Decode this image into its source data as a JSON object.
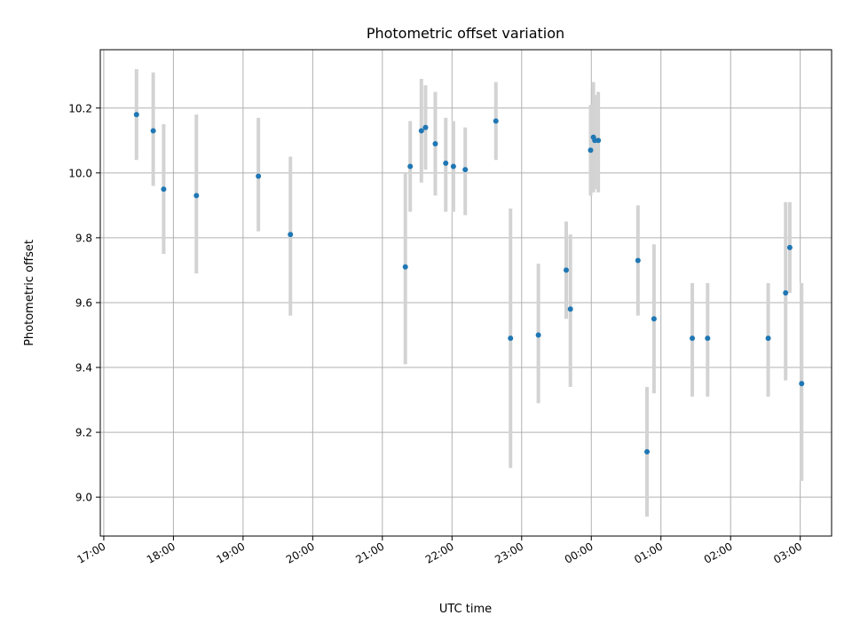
{
  "chart_data": {
    "type": "scatter",
    "title": "Photometric offset variation",
    "xlabel": "UTC time",
    "ylabel": "Photometric offset",
    "x_unit": "hours since 17:00 UTC",
    "xlim": [
      -0.05,
      10.45
    ],
    "ylim": [
      8.88,
      10.38
    ],
    "x_ticks": [
      {
        "value": 0,
        "label": "17:00"
      },
      {
        "value": 1,
        "label": "18:00"
      },
      {
        "value": 2,
        "label": "19:00"
      },
      {
        "value": 3,
        "label": "20:00"
      },
      {
        "value": 4,
        "label": "21:00"
      },
      {
        "value": 5,
        "label": "22:00"
      },
      {
        "value": 6,
        "label": "23:00"
      },
      {
        "value": 7,
        "label": "00:00"
      },
      {
        "value": 8,
        "label": "01:00"
      },
      {
        "value": 9,
        "label": "02:00"
      },
      {
        "value": 10,
        "label": "03:00"
      }
    ],
    "y_ticks": [
      {
        "value": 9.0,
        "label": "9.0"
      },
      {
        "value": 9.2,
        "label": "9.2"
      },
      {
        "value": 9.4,
        "label": "9.4"
      },
      {
        "value": 9.6,
        "label": "9.6"
      },
      {
        "value": 9.8,
        "label": "9.8"
      },
      {
        "value": 10.0,
        "label": "10.0"
      },
      {
        "value": 10.2,
        "label": "10.2"
      }
    ],
    "grid": true,
    "marker_color": "#1f77b4",
    "errorbar_color": "#d3d3d3",
    "points": [
      {
        "x": 0.47,
        "y": 10.18,
        "lo": 10.04,
        "hi": 10.32
      },
      {
        "x": 0.71,
        "y": 10.13,
        "lo": 9.96,
        "hi": 10.31
      },
      {
        "x": 0.86,
        "y": 9.95,
        "lo": 9.75,
        "hi": 10.15
      },
      {
        "x": 1.33,
        "y": 9.93,
        "lo": 9.69,
        "hi": 10.18
      },
      {
        "x": 2.22,
        "y": 9.99,
        "lo": 9.82,
        "hi": 10.17
      },
      {
        "x": 2.68,
        "y": 9.81,
        "lo": 9.56,
        "hi": 10.05
      },
      {
        "x": 4.33,
        "y": 9.71,
        "lo": 9.41,
        "hi": 10.0
      },
      {
        "x": 4.4,
        "y": 10.02,
        "lo": 9.88,
        "hi": 10.16
      },
      {
        "x": 4.56,
        "y": 10.13,
        "lo": 9.97,
        "hi": 10.29
      },
      {
        "x": 4.62,
        "y": 10.14,
        "lo": 10.01,
        "hi": 10.27
      },
      {
        "x": 4.76,
        "y": 10.09,
        "lo": 9.93,
        "hi": 10.25
      },
      {
        "x": 4.91,
        "y": 10.03,
        "lo": 9.88,
        "hi": 10.17
      },
      {
        "x": 5.02,
        "y": 10.02,
        "lo": 9.88,
        "hi": 10.16
      },
      {
        "x": 5.19,
        "y": 10.01,
        "lo": 9.87,
        "hi": 10.14
      },
      {
        "x": 5.63,
        "y": 10.16,
        "lo": 10.04,
        "hi": 10.28
      },
      {
        "x": 5.84,
        "y": 9.49,
        "lo": 9.09,
        "hi": 9.89
      },
      {
        "x": 6.24,
        "y": 9.5,
        "lo": 9.29,
        "hi": 9.72
      },
      {
        "x": 6.64,
        "y": 9.7,
        "lo": 9.55,
        "hi": 9.85
      },
      {
        "x": 6.7,
        "y": 9.58,
        "lo": 9.34,
        "hi": 9.81
      },
      {
        "x": 6.99,
        "y": 10.07,
        "lo": 9.93,
        "hi": 10.21
      },
      {
        "x": 7.03,
        "y": 10.11,
        "lo": 9.94,
        "hi": 10.28
      },
      {
        "x": 7.05,
        "y": 10.1,
        "lo": 9.95,
        "hi": 10.24
      },
      {
        "x": 7.1,
        "y": 10.1,
        "lo": 9.94,
        "hi": 10.25
      },
      {
        "x": 7.67,
        "y": 9.73,
        "lo": 9.56,
        "hi": 9.9
      },
      {
        "x": 7.8,
        "y": 9.14,
        "lo": 8.94,
        "hi": 9.34
      },
      {
        "x": 7.9,
        "y": 9.55,
        "lo": 9.32,
        "hi": 9.78
      },
      {
        "x": 8.45,
        "y": 9.49,
        "lo": 9.31,
        "hi": 9.66
      },
      {
        "x": 8.67,
        "y": 9.49,
        "lo": 9.31,
        "hi": 9.66
      },
      {
        "x": 9.54,
        "y": 9.49,
        "lo": 9.31,
        "hi": 9.66
      },
      {
        "x": 9.79,
        "y": 9.63,
        "lo": 9.36,
        "hi": 9.91
      },
      {
        "x": 9.85,
        "y": 9.77,
        "lo": 9.63,
        "hi": 9.91
      },
      {
        "x": 10.02,
        "y": 9.35,
        "lo": 9.05,
        "hi": 9.66
      }
    ]
  }
}
